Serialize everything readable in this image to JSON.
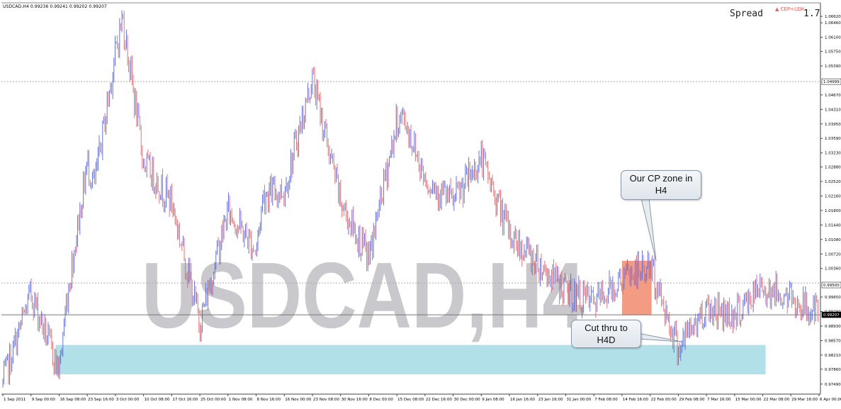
{
  "header": {
    "chart_info": "USDCAD,H4  0.99236 0.99241 0.99202 0.99207",
    "spread_label": "Spread",
    "spread_value": "1.7",
    "spread_tag": "▲ CEP+LEH...."
  },
  "watermark": "USDCAD,H4",
  "callouts": {
    "cp_zone": [
      "Our CP zone in",
      "H4"
    ],
    "cut_thru": [
      "Cut thru to",
      "H4D"
    ]
  },
  "colors": {
    "up_candle": "#5566dd",
    "down_candle": "#e06666",
    "cp_zone": "#f28a6e",
    "support_zone": "#a8dde6",
    "watermark": "#c9c9cd"
  },
  "chart_data": {
    "type": "candlestick",
    "title": "USDCAD,H4",
    "ylim": [
      0.9724,
      1.0678
    ],
    "y_ticks": [
      "1.06620",
      "1.06460",
      "1.06100",
      "1.05750",
      "1.05390",
      "1.04670",
      "1.04310",
      "1.03950",
      "1.03590",
      "1.03230",
      "1.02880",
      "1.02520",
      "1.02160",
      "1.01800",
      "1.01440",
      "1.01080",
      "1.00720",
      "1.00360",
      "0.99650",
      "0.99290",
      "0.98930",
      "0.98570",
      "0.98210",
      "0.97860",
      "0.97490"
    ],
    "price_labels": {
      "upper": "1.04999",
      "middle": "0.99207",
      "lower": "0.99500"
    },
    "x_ticks": [
      "1 Sep 2011",
      "9 Sep 00:00",
      "16 Sep 08:00",
      "23 Sep 16:00",
      "3 Oct 00:00",
      "10 Oct 08:00",
      "17 Oct 16:00",
      "25 Oct 00:00",
      "1 Nov 08:00",
      "8 Nov 16:00",
      "16 Nov 00:00",
      "23 Nov 08:00",
      "30 Nov 16:00",
      "8 Dec 00:00",
      "15 Dec 08:00",
      "22 Dec 16:00",
      "30 Dec 00:00",
      "9 Jan 08:00",
      "16 Jan 16:00",
      "23 Jan 16:00",
      "31 Jan 00:00",
      "7 Feb 08:00",
      "14 Feb 16:00",
      "22 Feb 00:00",
      "29 Feb 08:00",
      "7 Mar 16:00",
      "15 Mar 00:00",
      "22 Mar 08:00",
      "29 Mar 16:00",
      "6 Apr 00:00"
    ],
    "price_path": [
      [
        "1 Sep 2011",
        0.975
      ],
      [
        "9 Sep 00:00",
        0.9975
      ],
      [
        "16 Sep 08:00",
        0.978
      ],
      [
        "16 Sep 08:00",
        0.995
      ],
      [
        "23 Sep 16:00",
        1.03
      ],
      [
        "23 Sep 16:00",
        1.024
      ],
      [
        "3 Oct 00:00",
        1.057
      ],
      [
        "3 Oct 00:00",
        1.066
      ],
      [
        "10 Oct 08:00",
        1.03
      ],
      [
        "17 Oct 16:00",
        1.02
      ],
      [
        "25 Oct 00:00",
        0.99
      ],
      [
        "1 Nov 08:00",
        1.018
      ],
      [
        "8 Nov 16:00",
        1.008
      ],
      [
        "8 Nov 16:00",
        1.022
      ],
      [
        "16 Nov 00:00",
        1.023
      ],
      [
        "23 Nov 08:00",
        1.051
      ],
      [
        "30 Nov 16:00",
        1.02
      ],
      [
        "8 Dec 00:00",
        1.006
      ],
      [
        "15 Dec 08:00",
        1.04
      ],
      [
        "15 Dec 08:00",
        1.041
      ],
      [
        "22 Dec 16:00",
        1.026
      ],
      [
        "30 Dec 00:00",
        1.02
      ],
      [
        "9 Jan 08:00",
        1.031
      ],
      [
        "16 Jan 16:00",
        1.012
      ],
      [
        "23 Jan 16:00",
        1.005
      ],
      [
        "31 Jan 00:00",
        0.998
      ],
      [
        "7 Feb 08:00",
        0.995
      ],
      [
        "14 Feb 16:00",
        1.001
      ],
      [
        "22 Feb 00:00",
        1.004
      ],
      [
        "29 Feb 08:00",
        0.984
      ],
      [
        "7 Mar 16:00",
        0.994
      ],
      [
        "15 Mar 00:00",
        0.992
      ],
      [
        "22 Mar 08:00",
        0.999
      ],
      [
        "29 Mar 16:00",
        0.996
      ],
      [
        "6 Apr 00:00",
        0.992
      ]
    ],
    "horizontal_lines": [
      1.05,
      1.0,
      0.9921
    ],
    "zones": [
      {
        "name": "Our CP zone in H4",
        "x_from": "14 Feb 16:00",
        "x_to": "22 Feb 00:00",
        "y_from": 0.992,
        "y_to": 1.0055,
        "color": "#f28a6e"
      },
      {
        "name": "support",
        "x_from": "16 Sep 08:00",
        "x_to": "22 Mar 08:00",
        "y_from": 0.9773,
        "y_to": 0.9846,
        "color": "#a8dde6"
      }
    ]
  }
}
